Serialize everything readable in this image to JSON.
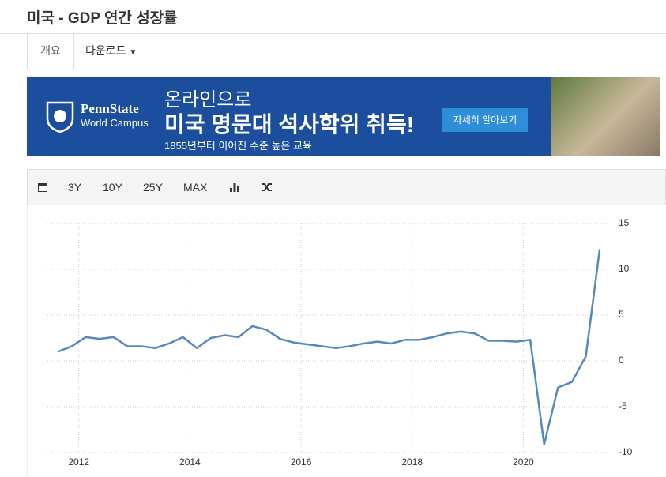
{
  "header": {
    "title": "미국 - GDP 연간 성장률"
  },
  "tabs": [
    "개요",
    "다운로드"
  ],
  "ad": {
    "brand": "PennState",
    "brand_sub": "World Campus",
    "line1": "온라인으로",
    "headline": "미국 명문대 석사학위 취득!",
    "sub": "1855년부터 이어진 수준 높은 교육",
    "button": "자세히 알아보기"
  },
  "toolbar": [
    "3Y",
    "10Y",
    "25Y",
    "MAX"
  ],
  "chart_data": {
    "type": "line",
    "x": [
      2011.625,
      2011.875,
      2012.125,
      2012.375,
      2012.625,
      2012.875,
      2013.125,
      2013.375,
      2013.625,
      2013.875,
      2014.125,
      2014.375,
      2014.625,
      2014.875,
      2015.125,
      2015.375,
      2015.625,
      2015.875,
      2016.125,
      2016.375,
      2016.625,
      2016.875,
      2017.125,
      2017.375,
      2017.625,
      2017.875,
      2018.125,
      2018.375,
      2018.625,
      2018.875,
      2019.125,
      2019.375,
      2019.625,
      2019.875,
      2020.125,
      2020.375,
      2020.625,
      2020.875,
      2021.125,
      2021.375
    ],
    "series": [
      {
        "color": "#5588bb",
        "values": [
          1.0,
          1.6,
          2.6,
          2.4,
          2.6,
          1.6,
          1.6,
          1.4,
          1.9,
          2.6,
          1.4,
          2.5,
          2.8,
          2.6,
          3.8,
          3.4,
          2.4,
          2.0,
          1.8,
          1.6,
          1.4,
          1.6,
          1.9,
          2.1,
          1.9,
          2.3,
          2.3,
          2.6,
          3.0,
          3.2,
          3.0,
          2.2,
          2.2,
          2.1,
          2.3,
          -9.1,
          -2.9,
          -2.3,
          0.5,
          12.2
        ]
      }
    ],
    "xlim": [
      2011.08,
      2021.53
    ],
    "xticks": [
      2012,
      2014,
      2016,
      2018,
      2020
    ],
    "ylim": [
      -10,
      15
    ],
    "yticks": [
      -10,
      -5,
      0,
      5,
      10,
      15
    ],
    "grid": true
  }
}
